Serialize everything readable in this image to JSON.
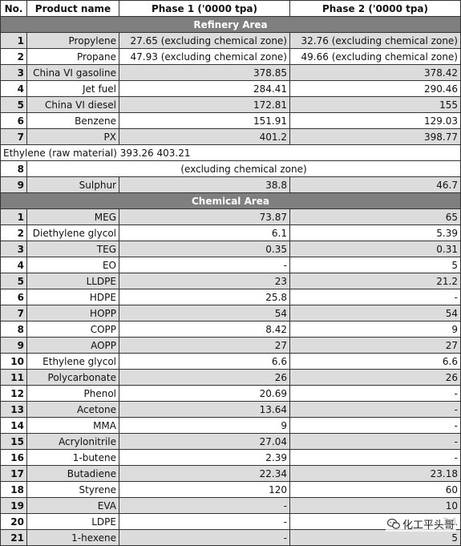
{
  "headers": {
    "no": "No.",
    "name": "Product name",
    "phase1": "Phase 1 ('0000 tpa)",
    "phase2": "Phase 2 ('0000 tpa)"
  },
  "sections": {
    "refinery": "Refinery Area",
    "chemical": "Chemical Area"
  },
  "refinery_rows": [
    {
      "no": "1",
      "name": "Propylene",
      "p1": "27.65 (excluding chemical zone)",
      "p2": "32.76 (excluding chemical zone)"
    },
    {
      "no": "2",
      "name": "Propane",
      "p1": "47.93 (excluding chemical zone)",
      "p2": "49.66 (excluding chemical zone)"
    },
    {
      "no": "3",
      "name": "China VI gasoline",
      "p1": "378.85",
      "p2": "378.42"
    },
    {
      "no": "4",
      "name": "Jet fuel",
      "p1": "284.41",
      "p2": "290.46"
    },
    {
      "no": "5",
      "name": "China VI diesel",
      "p1": "172.81",
      "p2": "155"
    },
    {
      "no": "6",
      "name": "Benzene",
      "p1": "151.91",
      "p2": "129.03"
    },
    {
      "no": "7",
      "name": "PX",
      "p1": "401.2",
      "p2": "398.77"
    }
  ],
  "ethylene_row": {
    "text": "Ethylene (raw material) 393.26 403.21",
    "no": "8",
    "note": "(excluding chemical zone)"
  },
  "sulphur_row": {
    "no": "9",
    "name": "Sulphur",
    "p1": "38.8",
    "p2": "46.7"
  },
  "chemical_rows": [
    {
      "no": "1",
      "name": "MEG",
      "p1": "73.87",
      "p2": "65"
    },
    {
      "no": "2",
      "name": "Diethylene glycol",
      "p1": "6.1",
      "p2": "5.39"
    },
    {
      "no": "3",
      "name": "TEG",
      "p1": "0.35",
      "p2": "0.31"
    },
    {
      "no": "4",
      "name": "EO",
      "p1": "-",
      "p2": "5"
    },
    {
      "no": "5",
      "name": "LLDPE",
      "p1": "23",
      "p2": "21.2"
    },
    {
      "no": "6",
      "name": "HDPE",
      "p1": "25.8",
      "p2": "-"
    },
    {
      "no": "7",
      "name": "HOPP",
      "p1": "54",
      "p2": "54"
    },
    {
      "no": "8",
      "name": "COPP",
      "p1": "8.42",
      "p2": "9"
    },
    {
      "no": "9",
      "name": "AOPP",
      "p1": "27",
      "p2": "27"
    },
    {
      "no": "10",
      "name": "Ethylene glycol",
      "p1": "6.6",
      "p2": "6.6"
    },
    {
      "no": "11",
      "name": "Polycarbonate",
      "p1": "26",
      "p2": "26"
    },
    {
      "no": "12",
      "name": "Phenol",
      "p1": "20.69",
      "p2": "-"
    },
    {
      "no": "13",
      "name": "Acetone",
      "p1": "13.64",
      "p2": "-"
    },
    {
      "no": "14",
      "name": "MMA",
      "p1": "9",
      "p2": "-"
    },
    {
      "no": "15",
      "name": "Acrylonitrile",
      "p1": "27.04",
      "p2": "-"
    },
    {
      "no": "16",
      "name": "1-butene",
      "p1": "2.39",
      "p2": "-"
    },
    {
      "no": "17",
      "name": "Butadiene",
      "p1": "22.34",
      "p2": "23.18"
    },
    {
      "no": "18",
      "name": "Styrene",
      "p1": "120",
      "p2": "60"
    },
    {
      "no": "19",
      "name": "EVA",
      "p1": "-",
      "p2": "10"
    },
    {
      "no": "20",
      "name": "LDPE",
      "p1": "-",
      "p2": "7.1"
    },
    {
      "no": "21",
      "name": "1-hexene",
      "p1": "-",
      "p2": "5"
    }
  ],
  "watermark": {
    "text": "化工平头哥",
    "icon": "wechat-icon"
  }
}
